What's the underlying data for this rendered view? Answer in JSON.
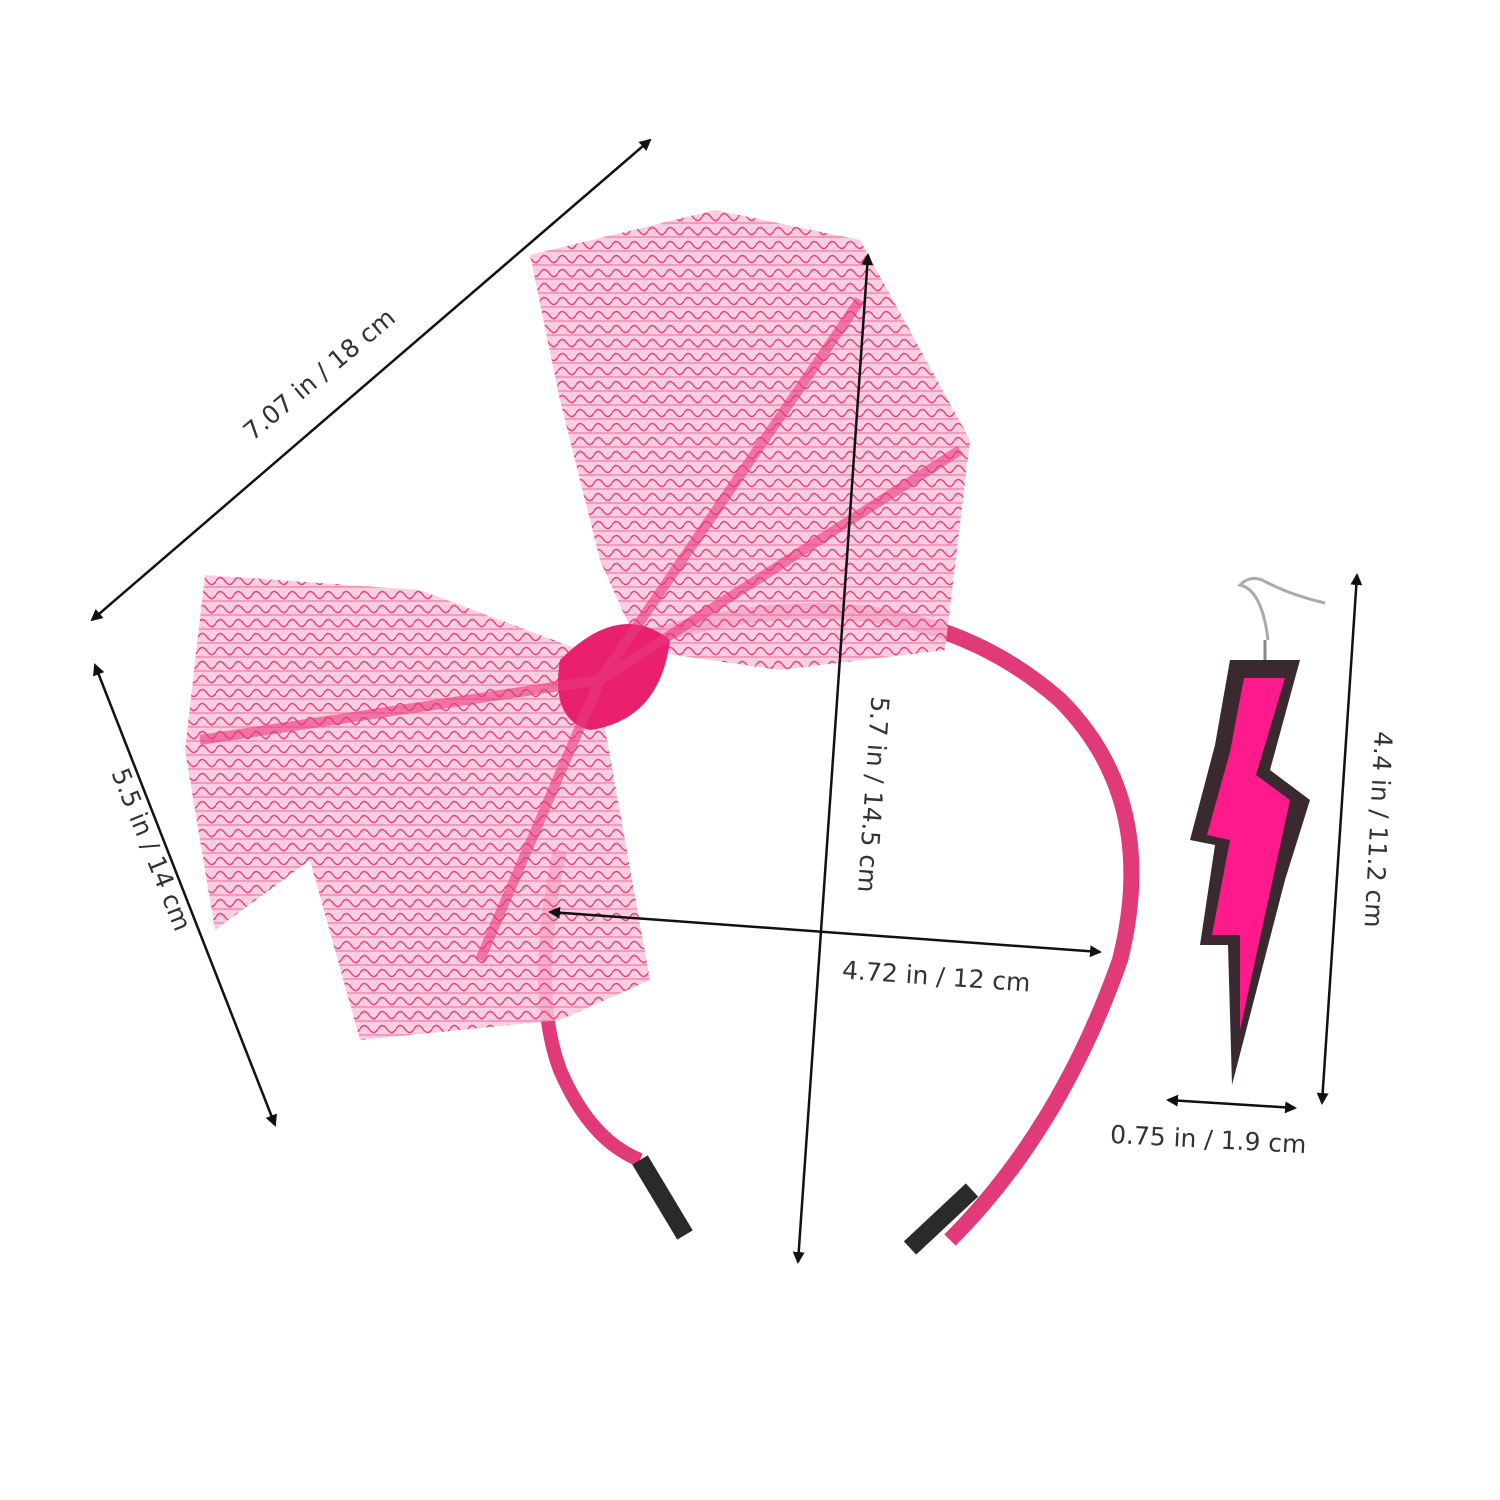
{
  "product": {
    "items": [
      "lace bow headband",
      "lightning bolt earring"
    ],
    "colors": {
      "lace": "#f0468c",
      "knot": "#e8206e",
      "headband": "#e03a78",
      "bolt": "#ff1a8c",
      "bolt_outline": "#3a2a30",
      "tips": "#2a2a2a"
    }
  },
  "dimensions": {
    "bow_width": "7.07 in / 18 cm",
    "bow_height": "5.5 in / 14 cm",
    "headband_height": "5.7 in / 14.5 cm",
    "headband_width": "4.72 in / 12 cm",
    "earring_length": "4.4 in / 11.2 cm",
    "earring_width": "0.75 in / 1.9 cm"
  }
}
